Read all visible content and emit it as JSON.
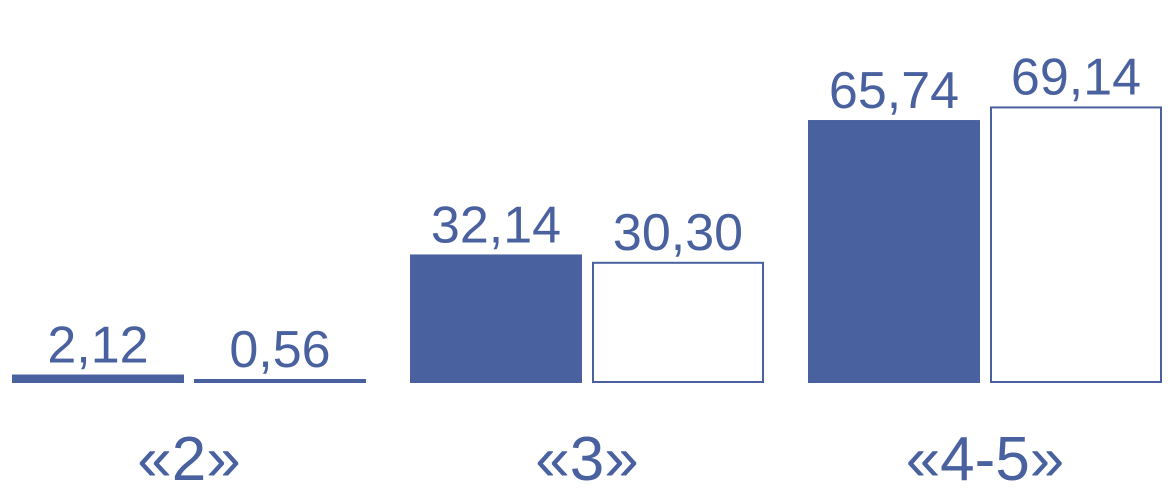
{
  "chart_data": {
    "type": "bar",
    "categories": [
      "«2»",
      "«3»",
      "«4-5»"
    ],
    "series": [
      {
        "values": [
          2.12,
          32.14,
          65.74
        ],
        "labels": [
          "2,12",
          "32,14",
          "65,74"
        ],
        "style": "filled"
      },
      {
        "values": [
          0.56,
          30.3,
          69.14
        ],
        "labels": [
          "0,56",
          "30,30",
          "69,14"
        ],
        "style": "outline"
      }
    ],
    "ylim": [
      0,
      75
    ],
    "grid": false,
    "legend": "none",
    "title": "",
    "xlabel": "",
    "ylabel": ""
  },
  "colors": {
    "bar_fill": "#4a61a0",
    "text": "#4a61a0",
    "outline": "#4a61a0",
    "background": "#ffffff"
  }
}
